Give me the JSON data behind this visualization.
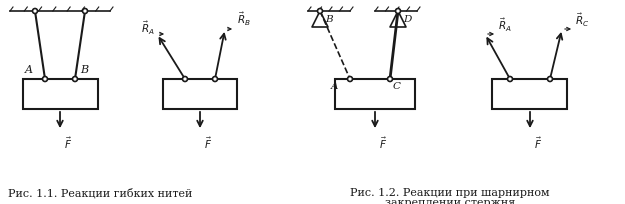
{
  "caption1": "Рис. 1.1. Реакции гибких нитей",
  "caption2_line1": "Рис. 1.2. Реакции при шарнирном",
  "caption2_line2": "закреплении стержня",
  "label_A": "A",
  "label_B": "B",
  "label_D": "D",
  "label_C": "C",
  "label_RA": "$\\vec{R}_A$",
  "label_RB": "$\\vec{R}_B$",
  "label_RC": "$\\vec{R}_C$",
  "label_F": "$\\vec{F}$",
  "bg_color": "#ffffff",
  "line_color": "#1a1a1a",
  "text_color": "#1a1a1a",
  "figsize": [
    6.25,
    2.05
  ],
  "dpi": 100
}
